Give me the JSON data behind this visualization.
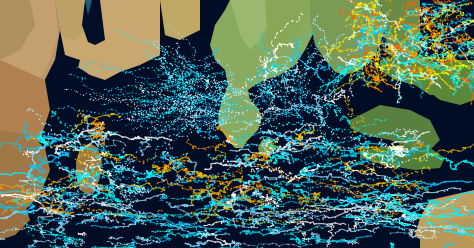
{
  "figsize": [
    4.74,
    2.48
  ],
  "dpi": 100,
  "ocean_color": "#020d28",
  "land_colors": {
    "africa_arabia": "#c4a06a",
    "east_africa_coast": "#9a7a50",
    "somalia": "#b89060",
    "india": "#9aae70",
    "india_green": "#7a9a50",
    "sea_green": "#6a9050",
    "indonesia": "#5a8040",
    "madagascar": "#a08050",
    "australia_nw": "#c0a060"
  },
  "track_colors_north": [
    "#00ccff",
    "#00eeff",
    "#00ffff",
    "#aaeeff",
    "#ffffff",
    "#88ddff"
  ],
  "track_colors_south": [
    "#00ccff",
    "#00eeff",
    "#00ffff",
    "#aaeeff",
    "#ffffff",
    "#88ddff",
    "#ffcc00",
    "#ff9900"
  ],
  "track_colors_pac": [
    "#00ccff",
    "#00ffff",
    "#00eeff",
    "#ffcc00",
    "#ff9900",
    "#ff6600",
    "#ffff00",
    "#aaffff",
    "#ffffff"
  ],
  "seed": 123
}
